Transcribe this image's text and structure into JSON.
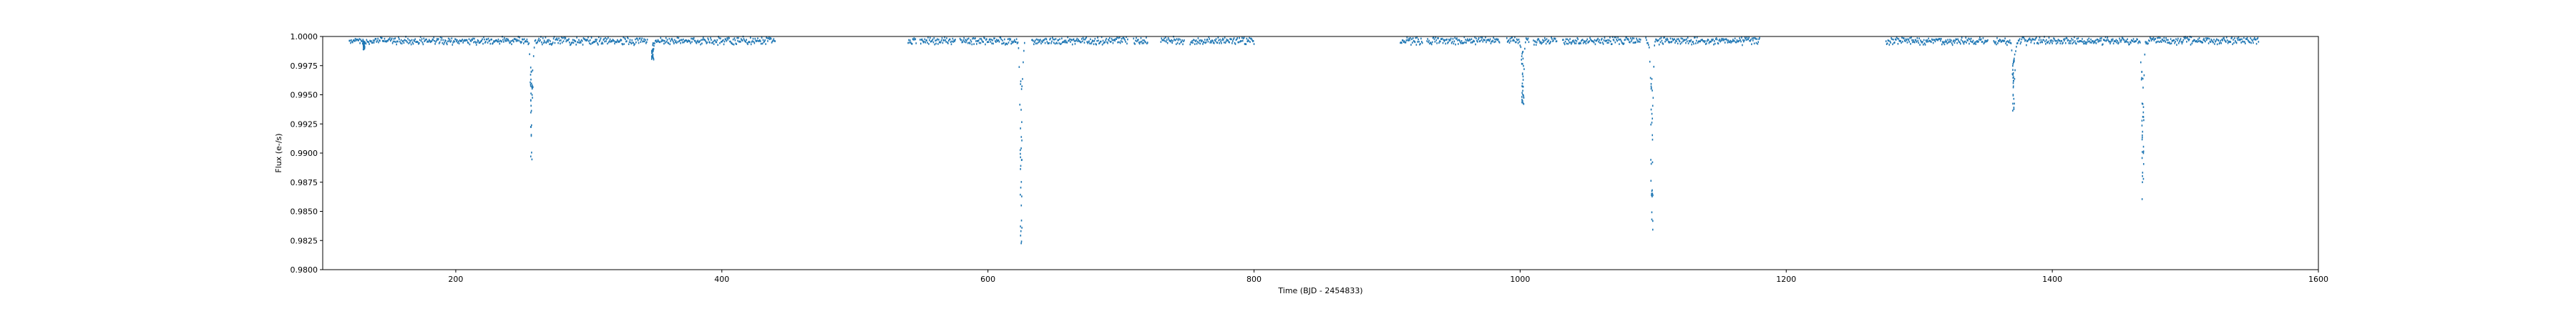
{
  "chart_data": {
    "type": "scatter",
    "title": "",
    "xlabel": "Time (BJD - 2454833)",
    "ylabel": "Flux (e-/s)",
    "xlim": [
      100,
      1600
    ],
    "ylim": [
      0.98,
      1.0
    ],
    "xticks": [
      200,
      400,
      600,
      800,
      1000,
      1200,
      1400,
      1600
    ],
    "yticks": [
      "0.9800",
      "0.9825",
      "0.9850",
      "0.9875",
      "0.9900",
      "0.9925",
      "0.9950",
      "0.9975",
      "1.0000"
    ],
    "grid": false,
    "legend": "none",
    "series": [
      {
        "color": "#1f77b4",
        "segments": [
          [
            120,
            440
          ],
          [
            540,
            720
          ],
          [
            730,
            800
          ],
          [
            910,
            1180
          ],
          [
            1275,
            1555
          ]
        ],
        "transits": [
          {
            "x": 257,
            "depth": 0.011
          },
          {
            "x": 625,
            "depth": 0.0185
          },
          {
            "x": 1002,
            "depth": 0.006
          },
          {
            "x": 1099,
            "depth": 0.018
          },
          {
            "x": 1371,
            "depth": 0.0065
          },
          {
            "x": 1468,
            "depth": 0.014
          },
          {
            "x": 131,
            "depth": 0.0012
          },
          {
            "x": 348,
            "depth": 0.002
          }
        ]
      }
    ]
  }
}
